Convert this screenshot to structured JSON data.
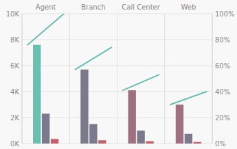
{
  "chart_data": {
    "type": "bar",
    "categories": [
      "Agent",
      "Branch",
      "Call Center",
      "Web"
    ],
    "series": [
      {
        "colors": [
          "#6bbfb0",
          "#7a7a8c",
          "#a07080",
          "#a07080"
        ],
        "values": [
          7600,
          5700,
          4100,
          3000
        ]
      },
      {
        "colors": [
          "#7a7a8c",
          "#7a7a8c",
          "#7a7a8c",
          "#7a7a8c"
        ],
        "values": [
          2300,
          1500,
          1000,
          750
        ]
      },
      {
        "colors": [
          "#c4606a",
          "#c4606a",
          "#c4606a",
          "#c4606a"
        ],
        "values": [
          350,
          250,
          180,
          120
        ]
      },
      {
        "type": "line",
        "axis": "y2",
        "color": "#6bbfb0",
        "values": [
          [
            0.76,
            1.0
          ],
          [
            0.57,
            0.74
          ],
          [
            0.41,
            0.53
          ],
          [
            0.3,
            0.4
          ]
        ]
      }
    ],
    "ylim": [
      0,
      10000
    ],
    "yticks": [
      {
        "value": 0,
        "label": "0K"
      },
      {
        "value": 2000,
        "label": "2K"
      },
      {
        "value": 4000,
        "label": "4K"
      },
      {
        "value": 6000,
        "label": "6K"
      },
      {
        "value": 8000,
        "label": "8K"
      },
      {
        "value": 10000,
        "label": "10K"
      }
    ],
    "y2lim": [
      0,
      1.0
    ],
    "y2ticks": [
      {
        "value": 0.0,
        "label": "0%"
      },
      {
        "value": 0.2,
        "label": "20%"
      },
      {
        "value": 0.4,
        "label": "40%"
      },
      {
        "value": 0.6,
        "label": "60%"
      },
      {
        "value": 0.8,
        "label": "80%"
      },
      {
        "value": 1.0,
        "label": "100%"
      }
    ],
    "grid": true
  }
}
